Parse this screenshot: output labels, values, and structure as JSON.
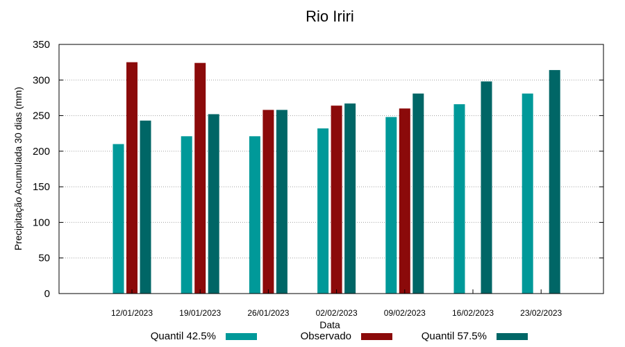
{
  "chart_data": {
    "type": "bar",
    "title": "Rio Iriri",
    "xlabel": "Data",
    "ylabel": "Precipitação Acumulada 30 dias (mm)",
    "ylim": [
      0,
      350
    ],
    "yticks": [
      0,
      50,
      100,
      150,
      200,
      250,
      300,
      350
    ],
    "grid": true,
    "legend_position": "bottom",
    "categories": [
      "12/01/2023",
      "19/01/2023",
      "26/01/2023",
      "02/02/2023",
      "09/02/2023",
      "16/02/2023",
      "23/02/2023"
    ],
    "series": [
      {
        "name": "Quantil 42.5%",
        "color": "#009999",
        "values": [
          210,
          221,
          221,
          232,
          248,
          266,
          281
        ]
      },
      {
        "name": "Observado",
        "color": "#8b0a0a",
        "values": [
          325,
          324,
          258,
          264,
          260,
          null,
          null
        ]
      },
      {
        "name": "Quantil 57.5%",
        "color": "#006666",
        "values": [
          243,
          252,
          258,
          267,
          281,
          298,
          314
        ]
      }
    ]
  }
}
